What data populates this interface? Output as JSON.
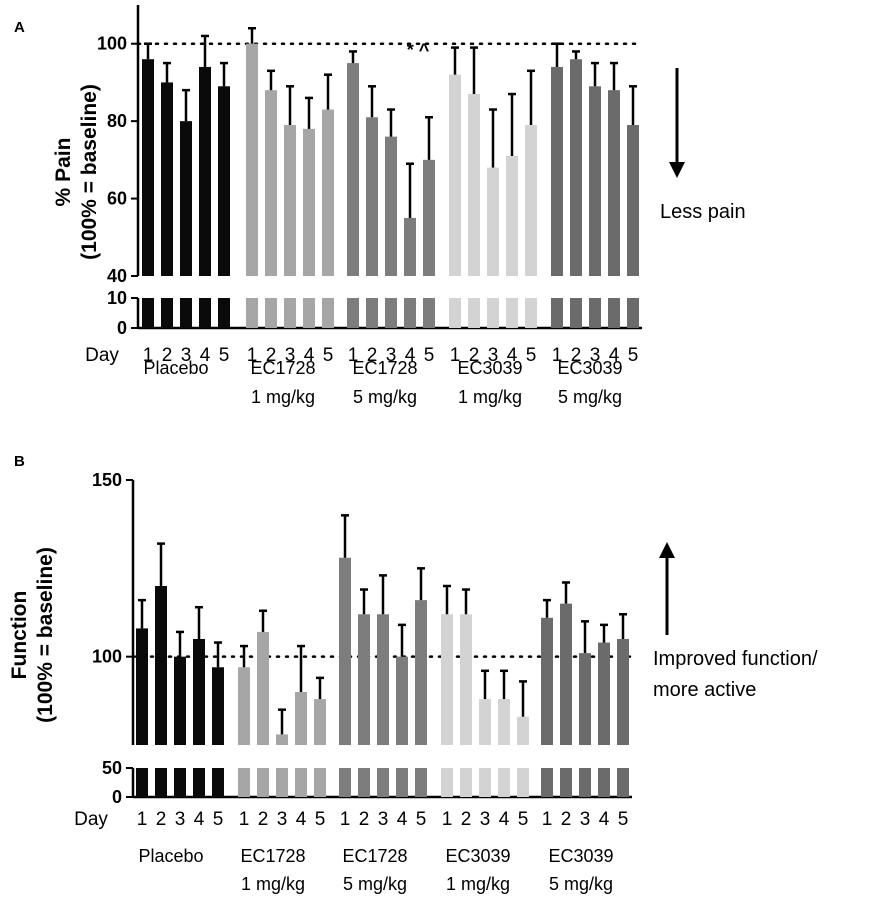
{
  "chart_data": [
    {
      "type": "bar",
      "panel": "A",
      "ylabel_line1": "% Pain",
      "ylabel_line2": "(100% = baseline)",
      "upper_ylim": [
        40,
        110
      ],
      "upper_ticks": [
        "40",
        "60",
        "80",
        "100"
      ],
      "lower_ylim": [
        0,
        10
      ],
      "lower_ticks": [
        "0",
        "10"
      ],
      "reference_line": 100,
      "x_axis_label": "Day",
      "day_labels": [
        "1",
        "2",
        "3",
        "4",
        "5"
      ],
      "groups": [
        {
          "line1": "Placebo",
          "line2": "",
          "color": "#0a0a0a",
          "values": [
            96,
            90,
            80,
            94,
            89
          ],
          "errors": [
            4,
            5,
            8,
            8,
            6
          ]
        },
        {
          "line1": "EC1728",
          "line2": "1 mg/kg",
          "color": "#a6a6a6",
          "values": [
            100,
            88,
            79,
            78,
            83
          ],
          "errors": [
            4,
            5,
            10,
            8,
            9
          ]
        },
        {
          "line1": "EC1728",
          "line2": "5 mg/kg",
          "color": "#7d7d7d",
          "values": [
            95,
            81,
            76,
            55,
            70
          ],
          "errors": [
            3,
            8,
            7,
            14,
            11
          ]
        },
        {
          "line1": "EC3039",
          "line2": "1 mg/kg",
          "color": "#d3d3d3",
          "values": [
            92,
            87,
            68,
            71,
            79
          ],
          "errors": [
            7,
            12,
            15,
            16,
            14
          ]
        },
        {
          "line1": "EC3039",
          "line2": "5 mg/kg",
          "color": "#6b6b6b",
          "values": [
            94,
            96,
            89,
            88,
            79
          ],
          "errors": [
            6,
            2,
            6,
            7,
            10
          ]
        }
      ],
      "annotation": "* ^",
      "side_note": "Less pain",
      "arrow_direction": "down"
    },
    {
      "type": "bar",
      "panel": "B",
      "ylabel_line1": "Function",
      "ylabel_line2": "(100% = baseline)",
      "upper_ylim": [
        75,
        150
      ],
      "upper_ticks": [
        "100",
        "150"
      ],
      "lower_ylim": [
        0,
        50
      ],
      "lower_ticks": [
        "0",
        "50"
      ],
      "reference_line": 100,
      "x_axis_label": "Day",
      "day_labels": [
        "1",
        "2",
        "3",
        "4",
        "5"
      ],
      "groups": [
        {
          "line1": "Placebo",
          "line2": "",
          "color": "#0a0a0a",
          "values": [
            108,
            120,
            100,
            105,
            97
          ],
          "errors": [
            8,
            12,
            7,
            9,
            7
          ]
        },
        {
          "line1": "EC1728",
          "line2": "1 mg/kg",
          "color": "#a6a6a6",
          "values": [
            97,
            107,
            78,
            90,
            88
          ],
          "errors": [
            6,
            6,
            7,
            13,
            6
          ]
        },
        {
          "line1": "EC1728",
          "line2": "5 mg/kg",
          "color": "#7d7d7d",
          "values": [
            128,
            112,
            112,
            100,
            116
          ],
          "errors": [
            12,
            7,
            11,
            9,
            9
          ]
        },
        {
          "line1": "EC3039",
          "line2": "1 mg/kg",
          "color": "#d3d3d3",
          "values": [
            112,
            112,
            88,
            88,
            83
          ],
          "errors": [
            8,
            7,
            8,
            8,
            10
          ]
        },
        {
          "line1": "EC3039",
          "line2": "5 mg/kg",
          "color": "#6b6b6b",
          "values": [
            111,
            115,
            101,
            104,
            105
          ],
          "errors": [
            5,
            6,
            9,
            5,
            7
          ]
        }
      ],
      "side_note_line1": "Improved function/",
      "side_note_line2": "more active",
      "arrow_direction": "up"
    }
  ]
}
